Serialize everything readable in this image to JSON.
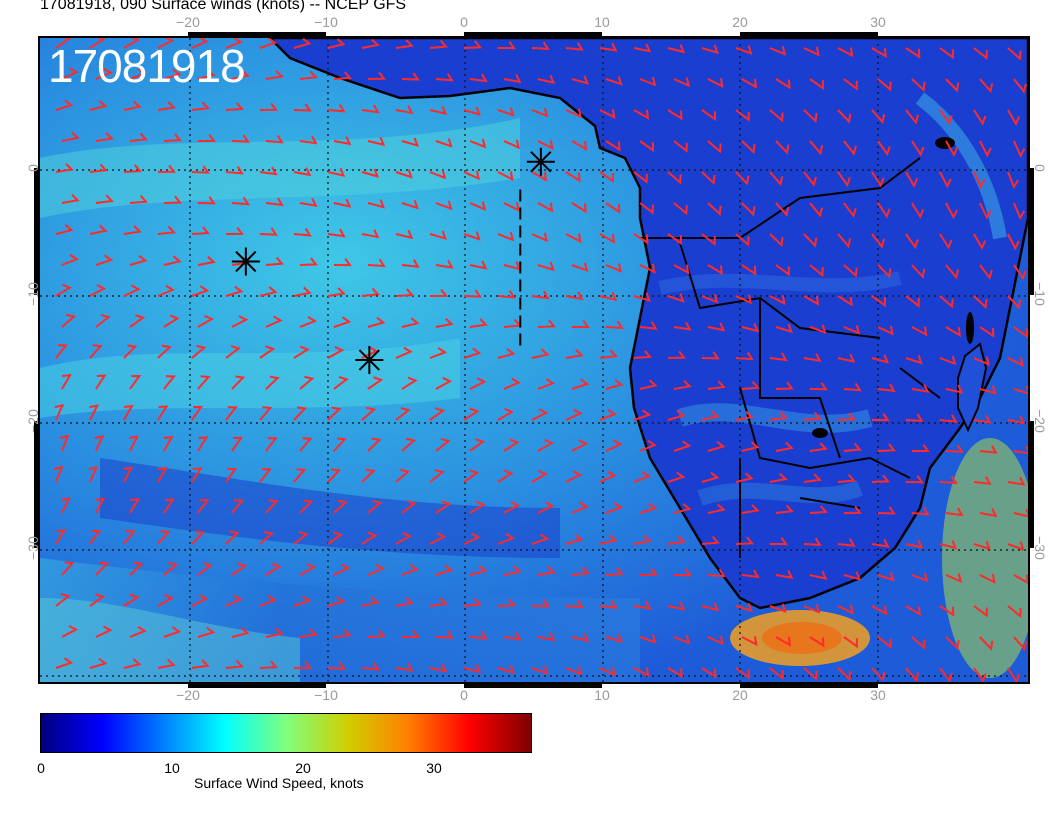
{
  "header": {
    "title": "17081918, 090 Surface winds (knots) -- NCEP GFS"
  },
  "map": {
    "stamp": "17081918",
    "lon_ticks": [
      "−20",
      "−10",
      "0",
      "10",
      "20",
      "30"
    ],
    "lat_ticks": [
      "0",
      "−10",
      "−20",
      "−30"
    ],
    "lon_range_deg": [
      -30,
      42
    ],
    "lat_range_deg": [
      -41,
      10
    ],
    "wind_barb_color": "#ff2a2a",
    "coastline_color": "#000000",
    "markers": [
      {
        "lon": 6.5,
        "lat": 0.2,
        "symbol": "asterisk"
      },
      {
        "lon": -15.0,
        "lat": -7.7,
        "symbol": "asterisk"
      },
      {
        "lon": -6.0,
        "lat": -15.5,
        "symbol": "asterisk"
      }
    ],
    "dashed_line": {
      "lon": 5.0,
      "lat_from": -2.0,
      "lat_to": -14.5
    }
  },
  "colorbar": {
    "label": "Surface Wind Speed, knots",
    "ticks": [
      "0",
      "10",
      "20",
      "30"
    ],
    "tick_values": [
      0,
      10,
      20,
      30
    ],
    "range": [
      0,
      36
    ],
    "colors": [
      "#00007f",
      "#0000ff",
      "#007fff",
      "#00ffff",
      "#7fff7f",
      "#cfd000",
      "#ff7f00",
      "#ff0000",
      "#7f0000"
    ]
  }
}
